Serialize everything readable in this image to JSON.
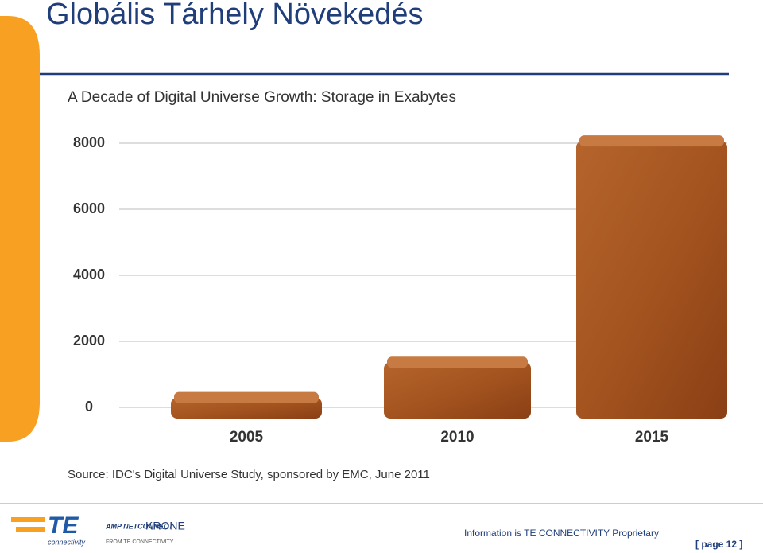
{
  "slide_title": "Globális Tárhely Növekedés",
  "chart_data": {
    "type": "bar",
    "title": "A Decade of Digital Universe Growth: Storage in Exabytes",
    "categories": [
      "2005",
      "2010",
      "2015"
    ],
    "values": [
      130,
      1200,
      7900
    ],
    "color": "#a4541f",
    "ylim": [
      0,
      8000
    ],
    "yticks": [
      0,
      2000,
      4000,
      6000,
      8000
    ],
    "grid": true,
    "source": "Source: IDC's Digital Universe Study, sponsored by EMC, June 2011"
  },
  "footer": {
    "logo_te": "TE",
    "logo_te_sub": "connectivity",
    "logo_amp": "AMP NETCONNECT",
    "logo_krone": "KRONE",
    "logo_krone_sub": "FROM TE CONNECTIVITY",
    "notice": "Information is TE CONNECTIVITY Proprietary",
    "page": "[ page 12 ]"
  }
}
